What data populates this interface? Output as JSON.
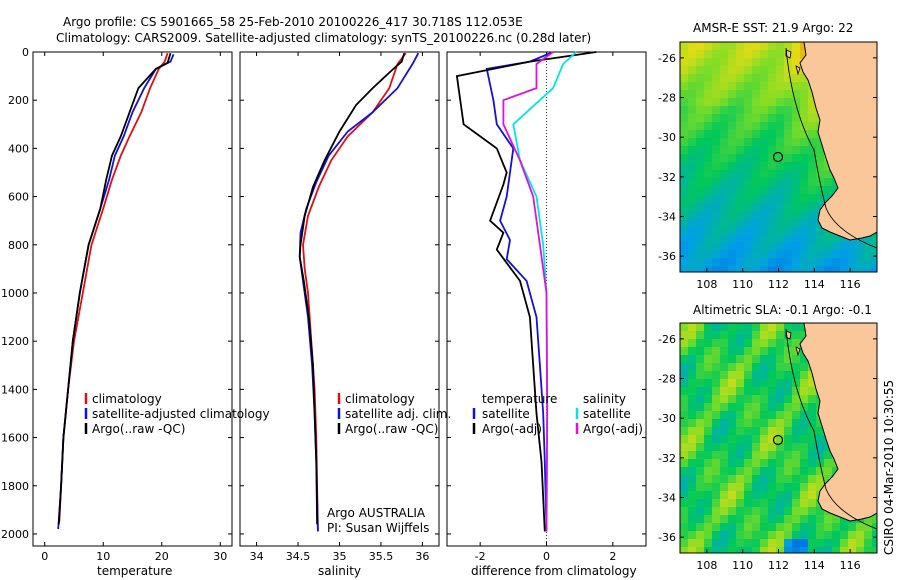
{
  "title": {
    "line1": "Argo profile: CS 5901665_58 25-Feb-2010 20100226_417 30.718S 112.053E",
    "line2": "Climatology: CARS2009. Satellite-adjusted climatology: synTS_20100226.nc (0.28d later)"
  },
  "side_text": "CSIRO 04-Mar-2010 10:30:55",
  "colors": {
    "climatology": "#e01010",
    "satellite": "#1010e0",
    "argo": "#000000",
    "sal_sat": "#00e5e5",
    "sal_argo": "#e010e0",
    "land": "#f9c79a"
  },
  "chart_data": [
    {
      "type": "line",
      "id": "temperature",
      "xlabel": "temperature",
      "xlim": [
        -2,
        32
      ],
      "xticks": [
        0,
        10,
        20,
        30
      ],
      "ylim": [
        0,
        2050
      ],
      "yticks": [
        0,
        200,
        400,
        600,
        800,
        1000,
        1200,
        1400,
        1600,
        1800,
        2000
      ],
      "y_reversed": true,
      "legend": [
        {
          "label": "climatology",
          "color": "#e01010"
        },
        {
          "label": "satellite-adjusted climatology",
          "color": "#1010e0"
        },
        {
          "label": "Argo(..raw -QC)",
          "color": "#000000"
        }
      ],
      "series": [
        {
          "name": "climatology",
          "color": "#e01010",
          "points": [
            [
              21,
              5
            ],
            [
              20.5,
              40
            ],
            [
              19.5,
              70
            ],
            [
              18,
              150
            ],
            [
              16.5,
              250
            ],
            [
              14.5,
              350
            ],
            [
              13,
              430
            ],
            [
              11.5,
              530
            ],
            [
              10,
              650
            ],
            [
              8,
              800
            ],
            [
              6.5,
              1000
            ],
            [
              5,
              1200
            ],
            [
              4,
              1400
            ],
            [
              3.2,
              1600
            ],
            [
              2.8,
              1800
            ],
            [
              2.5,
              1950
            ]
          ]
        },
        {
          "name": "satellite-adjusted climatology",
          "color": "#1010e0",
          "points": [
            [
              22,
              10
            ],
            [
              21.5,
              40
            ],
            [
              19,
              70
            ],
            [
              17,
              150
            ],
            [
              15,
              250
            ],
            [
              13.5,
              350
            ],
            [
              12,
              430
            ],
            [
              11,
              530
            ],
            [
              9.5,
              650
            ],
            [
              7.5,
              800
            ],
            [
              6,
              1000
            ],
            [
              4.8,
              1200
            ],
            [
              4,
              1400
            ],
            [
              3.2,
              1600
            ],
            [
              2.8,
              1800
            ],
            [
              2.3,
              1980
            ]
          ]
        },
        {
          "name": "Argo(..raw -QC)",
          "color": "#000000",
          "points": [
            [
              21.5,
              5
            ],
            [
              21,
              45
            ],
            [
              19,
              70
            ],
            [
              16,
              150
            ],
            [
              14.5,
              250
            ],
            [
              13,
              350
            ],
            [
              11.5,
              430
            ],
            [
              10.5,
              530
            ],
            [
              9.5,
              650
            ],
            [
              7.5,
              800
            ],
            [
              6,
              1000
            ],
            [
              4.8,
              1200
            ],
            [
              4,
              1400
            ],
            [
              3.2,
              1600
            ],
            [
              2.8,
              1800
            ],
            [
              2.4,
              1960
            ]
          ]
        }
      ]
    },
    {
      "type": "line",
      "id": "salinity",
      "xlabel": "salinity",
      "xlim": [
        33.8,
        36.2
      ],
      "xticks": [
        34,
        34.5,
        35,
        35.5,
        36
      ],
      "ylim": [
        0,
        2050
      ],
      "y_reversed": true,
      "legend": [
        {
          "label": "climatology",
          "color": "#e01010"
        },
        {
          "label": "satellite adj. clim.",
          "color": "#1010e0"
        },
        {
          "label": "Argo(..raw -QC)",
          "color": "#000000"
        }
      ],
      "annotations": [
        "Argo AUSTRALIA",
        "PI: Susan Wijffels"
      ],
      "series": [
        {
          "name": "climatology",
          "color": "#e01010",
          "points": [
            [
              35.8,
              5
            ],
            [
              35.7,
              50
            ],
            [
              35.6,
              150
            ],
            [
              35.4,
              250
            ],
            [
              35.1,
              350
            ],
            [
              34.9,
              450
            ],
            [
              34.75,
              560
            ],
            [
              34.62,
              680
            ],
            [
              34.56,
              800
            ],
            [
              34.58,
              900
            ],
            [
              34.62,
              1000
            ],
            [
              34.66,
              1200
            ],
            [
              34.7,
              1400
            ],
            [
              34.72,
              1600
            ],
            [
              34.73,
              1800
            ],
            [
              34.74,
              1980
            ]
          ]
        },
        {
          "name": "satellite adj. clim.",
          "color": "#1010e0",
          "points": [
            [
              35.95,
              5
            ],
            [
              35.88,
              50
            ],
            [
              35.7,
              150
            ],
            [
              35.4,
              250
            ],
            [
              35.1,
              330
            ],
            [
              34.87,
              430
            ],
            [
              34.72,
              540
            ],
            [
              34.6,
              650
            ],
            [
              34.53,
              750
            ],
            [
              34.52,
              850
            ],
            [
              34.56,
              950
            ],
            [
              34.62,
              1100
            ],
            [
              34.67,
              1300
            ],
            [
              34.7,
              1500
            ],
            [
              34.72,
              1700
            ],
            [
              34.74,
              1990
            ]
          ]
        },
        {
          "name": "Argo(..raw -QC)",
          "color": "#000000",
          "points": [
            [
              35.78,
              5
            ],
            [
              35.75,
              40
            ],
            [
              35.65,
              70
            ],
            [
              35.4,
              150
            ],
            [
              35.2,
              220
            ],
            [
              35,
              330
            ],
            [
              34.82,
              450
            ],
            [
              34.68,
              560
            ],
            [
              34.58,
              680
            ],
            [
              34.53,
              800
            ],
            [
              34.52,
              850
            ],
            [
              34.57,
              950
            ],
            [
              34.63,
              1100
            ],
            [
              34.68,
              1300
            ],
            [
              34.7,
              1500
            ],
            [
              34.72,
              1700
            ],
            [
              34.73,
              1960
            ]
          ]
        }
      ]
    },
    {
      "type": "line",
      "id": "difference",
      "xlabel": "difference from climatology",
      "xlim": [
        -3,
        3
      ],
      "xticks": [
        -2,
        0,
        2
      ],
      "ylim": [
        0,
        2050
      ],
      "y_reversed": true,
      "legend_left": [
        {
          "label": "temperature",
          "color": null
        },
        {
          "label": "satellite",
          "color": "#1010e0"
        },
        {
          "label": "Argo(-adj)",
          "color": "#000000"
        }
      ],
      "legend_right": [
        {
          "label": "salinity",
          "color": null
        },
        {
          "label": "satellite",
          "color": "#00e5e5"
        },
        {
          "label": "Argo(-adj)",
          "color": "#e010e0"
        }
      ],
      "series": [
        {
          "name": "temperature satellite",
          "color": "#1010e0",
          "points": [
            [
              0.2,
              0
            ],
            [
              -0.5,
              40
            ],
            [
              -1.8,
              70
            ],
            [
              -1.6,
              200
            ],
            [
              -1.5,
              300
            ],
            [
              -1,
              400
            ],
            [
              -1.1,
              500
            ],
            [
              -1.2,
              600
            ],
            [
              -1.4,
              700
            ],
            [
              -1.1,
              780
            ],
            [
              -1.2,
              860
            ],
            [
              -0.6,
              950
            ],
            [
              -0.3,
              1100
            ],
            [
              -0.2,
              1300
            ],
            [
              -0.1,
              1500
            ],
            [
              -0.05,
              1700
            ],
            [
              0,
              1990
            ]
          ]
        },
        {
          "name": "temperature Argo(-adj)",
          "color": "#000000",
          "points": [
            [
              1.5,
              0
            ],
            [
              -0.5,
              40
            ],
            [
              -2.7,
              100
            ],
            [
              -2.5,
              300
            ],
            [
              -1.5,
              400
            ],
            [
              -1.2,
              500
            ],
            [
              -1.3,
              550
            ],
            [
              -1.7,
              700
            ],
            [
              -1.3,
              750
            ],
            [
              -1.5,
              820
            ],
            [
              -0.8,
              950
            ],
            [
              -0.5,
              1100
            ],
            [
              -0.4,
              1300
            ],
            [
              -0.3,
              1500
            ],
            [
              -0.15,
              1700
            ],
            [
              -0.05,
              1990
            ]
          ]
        },
        {
          "name": "salinity satellite",
          "color": "#00e5e5",
          "points": [
            [
              0.9,
              0
            ],
            [
              0.5,
              50
            ],
            [
              0.2,
              150
            ],
            [
              -1,
              300
            ],
            [
              -0.8,
              450
            ],
            [
              -0.3,
              600
            ],
            [
              -0.1,
              800
            ],
            [
              0,
              1000
            ],
            [
              0.02,
              1500
            ],
            [
              0,
              1990
            ]
          ]
        },
        {
          "name": "salinity Argo(-adj)",
          "color": "#e010e0",
          "points": [
            [
              0.2,
              0
            ],
            [
              -0.3,
              50
            ],
            [
              -0.3,
              150
            ],
            [
              -1.3,
              200
            ],
            [
              -1.3,
              300
            ],
            [
              -0.8,
              450
            ],
            [
              -0.4,
              600
            ],
            [
              -0.2,
              800
            ],
            [
              0,
              1000
            ],
            [
              0.02,
              1500
            ],
            [
              0,
              1990
            ]
          ]
        }
      ]
    },
    {
      "type": "heatmap",
      "id": "sst-map",
      "title": "AMSR-E SST: 21.9 Argo: 22",
      "xlim": [
        106.5,
        117.5
      ],
      "ylim": [
        -36.8,
        -25.2
      ],
      "xticks": [
        108,
        110,
        112,
        114,
        116
      ],
      "yticks": [
        -26,
        -28,
        -30,
        -32,
        -34,
        -36
      ],
      "marker": {
        "lon": 112.053,
        "lat": -30.718
      }
    },
    {
      "type": "heatmap",
      "id": "sla-map",
      "title": "Altimetric SLA: -0.1 Argo: -0.1",
      "xlim": [
        106.5,
        117.5
      ],
      "ylim": [
        -36.8,
        -25.2
      ],
      "xticks": [
        108,
        110,
        112,
        114,
        116
      ],
      "yticks": [
        -26,
        -28,
        -30,
        -32,
        -34,
        -36
      ],
      "marker": {
        "lon": 112.053,
        "lat": -30.718
      }
    }
  ]
}
